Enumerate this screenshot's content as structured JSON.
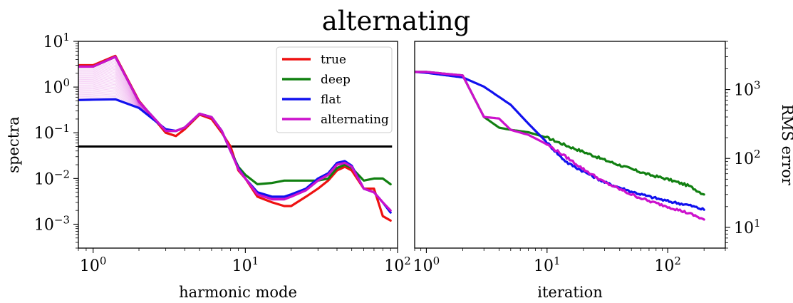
{
  "title": "alternating",
  "chart_data": [
    {
      "type": "line",
      "xscale": "log",
      "yscale": "log",
      "xlabel": "harmonic mode",
      "ylabel": "spectra",
      "xlim": [
        0.8,
        100
      ],
      "ylim": [
        0.0003,
        10
      ],
      "xticks": [
        1,
        10,
        100
      ],
      "xtick_labels": [
        {
          "base": "10",
          "exp": "0"
        },
        {
          "base": "10",
          "exp": "1"
        },
        {
          "base": "10",
          "exp": "2"
        }
      ],
      "yticks": [
        0.001,
        0.01,
        0.1,
        1,
        10
      ],
      "ytick_labels": [
        {
          "base": "10",
          "exp": "−3"
        },
        {
          "base": "10",
          "exp": "−2"
        },
        {
          "base": "10",
          "exp": "−1"
        },
        {
          "base": "10",
          "exp": "0"
        },
        {
          "base": "10",
          "exp": "1"
        }
      ],
      "legend": {
        "placement": "top-right",
        "entries": [
          "true",
          "deep",
          "flat",
          "alternating"
        ]
      },
      "hline": {
        "y": 0.05,
        "color": "#000000"
      },
      "x": [
        0.8,
        1,
        1.4,
        2,
        3,
        3.5,
        4,
        5,
        6,
        7,
        8,
        9,
        10,
        12,
        15,
        18,
        20,
        25,
        30,
        35,
        40,
        45,
        50,
        60,
        70,
        80,
        90
      ],
      "series": [
        {
          "name": "true",
          "color": "#ee1111",
          "values": [
            3,
            3,
            4.8,
            0.5,
            0.1,
            0.085,
            0.12,
            0.25,
            0.2,
            0.1,
            0.05,
            0.015,
            0.01,
            0.004,
            0.003,
            0.0025,
            0.0025,
            0.004,
            0.006,
            0.009,
            0.015,
            0.018,
            0.015,
            0.006,
            0.006,
            0.0015,
            0.0012
          ]
        },
        {
          "name": "deep",
          "color": "#118011",
          "values": [
            2.8,
            2.8,
            4.6,
            0.48,
            0.11,
            0.11,
            0.13,
            0.26,
            0.22,
            0.11,
            0.04,
            0.018,
            0.012,
            0.0075,
            0.008,
            0.009,
            0.009,
            0.009,
            0.009,
            0.01,
            0.017,
            0.02,
            0.017,
            0.009,
            0.01,
            0.01,
            0.0075
          ]
        },
        {
          "name": "flat",
          "color": "#1111ee",
          "values": [
            0.52,
            0.53,
            0.54,
            0.35,
            0.12,
            0.11,
            0.13,
            0.26,
            0.22,
            0.11,
            0.04,
            0.017,
            0.01,
            0.005,
            0.004,
            0.004,
            0.0045,
            0.006,
            0.01,
            0.013,
            0.022,
            0.024,
            0.019,
            0.006,
            0.005,
            0.003,
            0.0018
          ]
        },
        {
          "name": "alternating",
          "color": "#cc11cc",
          "values": [
            2.8,
            2.8,
            4.6,
            0.48,
            0.11,
            0.11,
            0.13,
            0.26,
            0.22,
            0.11,
            0.04,
            0.016,
            0.01,
            0.0045,
            0.0035,
            0.0035,
            0.004,
            0.0055,
            0.009,
            0.012,
            0.02,
            0.022,
            0.018,
            0.006,
            0.005,
            0.003,
            0.002
          ]
        }
      ]
    },
    {
      "type": "line",
      "xscale": "log",
      "yscale": "log",
      "xlabel": "iteration",
      "ylabel": "RMS error",
      "ylabel_side": "right",
      "xlim": [
        0.8,
        300
      ],
      "ylim": [
        5,
        5000
      ],
      "xticks": [
        1,
        10,
        100
      ],
      "xtick_labels": [
        {
          "base": "10",
          "exp": "0"
        },
        {
          "base": "10",
          "exp": "1"
        },
        {
          "base": "10",
          "exp": "2"
        }
      ],
      "yticks": [
        10,
        100,
        1000
      ],
      "ytick_labels": [
        {
          "base": "10",
          "exp": "1"
        },
        {
          "base": "10",
          "exp": "2"
        },
        {
          "base": "10",
          "exp": "3"
        }
      ],
      "series": [
        {
          "name": "deep",
          "color": "#118011",
          "x": [
            0.8,
            1,
            2,
            3,
            4,
            5,
            7,
            10,
            15,
            20,
            30,
            50,
            70,
            100,
            150,
            200
          ],
          "values": [
            1800,
            1800,
            1600,
            400,
            280,
            260,
            240,
            200,
            150,
            125,
            95,
            70,
            58,
            50,
            40,
            30
          ]
        },
        {
          "name": "flat",
          "color": "#1111ee",
          "x": [
            0.8,
            1,
            2,
            3,
            5,
            7,
            10,
            13,
            15,
            20,
            30,
            50,
            70,
            100,
            150,
            200
          ],
          "values": [
            1800,
            1750,
            1500,
            1100,
            600,
            320,
            170,
            105,
            85,
            65,
            45,
            33,
            28,
            24,
            21,
            18
          ]
        },
        {
          "name": "alternating",
          "color": "#cc11cc",
          "x": [
            0.8,
            1,
            2,
            3,
            4,
            5,
            7,
            10,
            15,
            20,
            30,
            50,
            70,
            100,
            150,
            200
          ],
          "values": [
            1800,
            1800,
            1600,
            400,
            380,
            260,
            220,
            160,
            100,
            70,
            45,
            30,
            24,
            20,
            16,
            13
          ]
        }
      ]
    }
  ]
}
